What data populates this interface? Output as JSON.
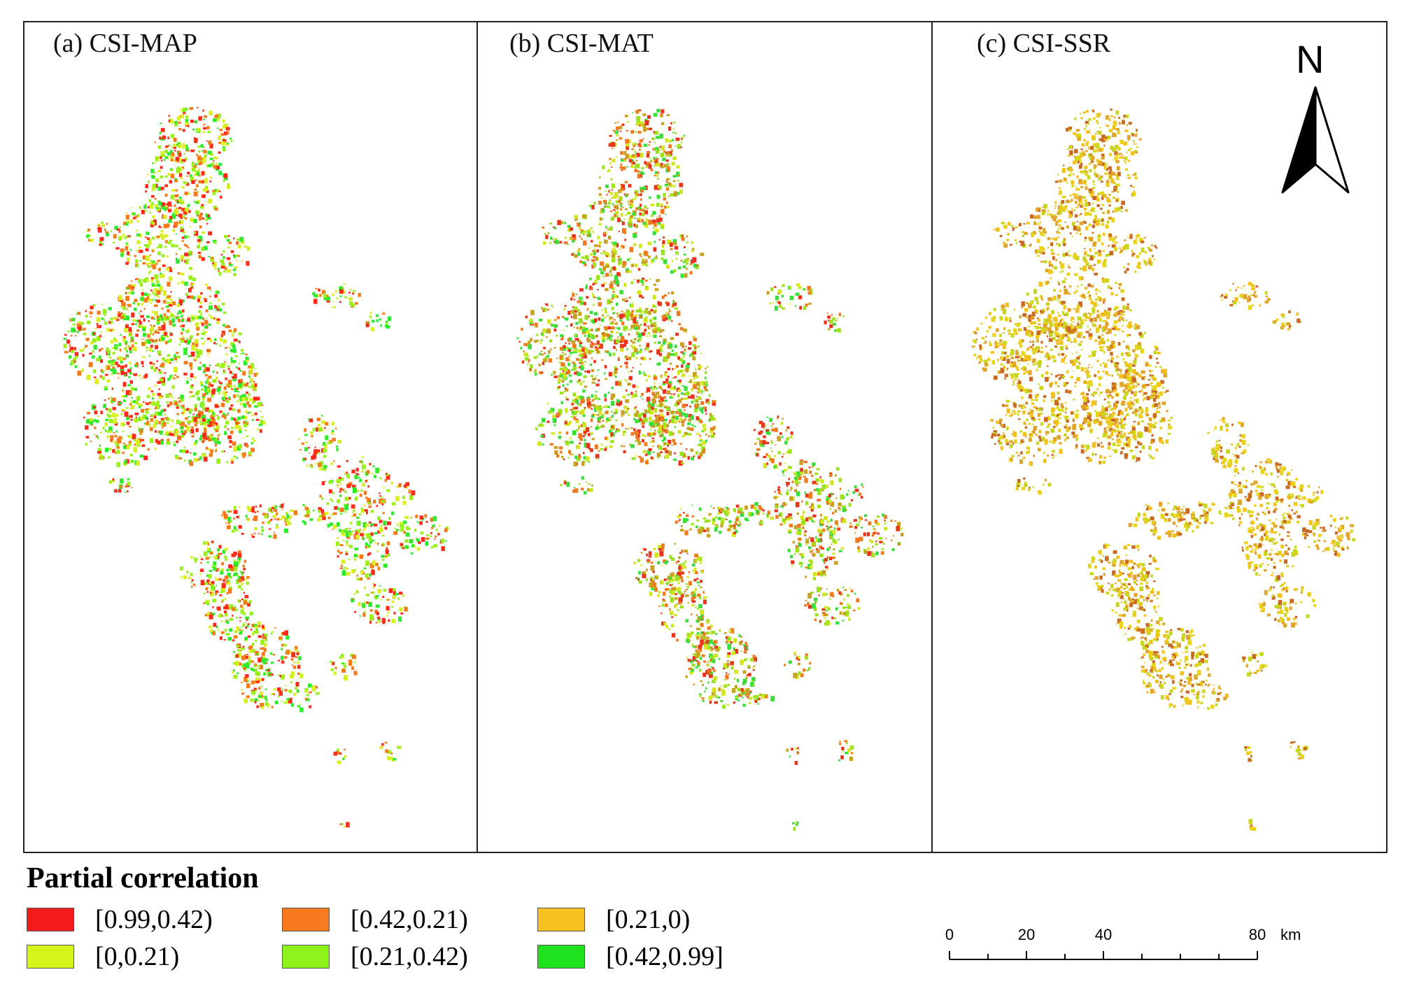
{
  "panels": [
    {
      "title": "(a) CSI-MAP",
      "palette": [
        "#ff2a1a",
        "#f47a1a",
        "#9bef1a",
        "#2cea2c",
        "#d8ef24"
      ]
    },
    {
      "title": "(b) CSI-MAT",
      "palette": [
        "#e8341c",
        "#ef7a20",
        "#9ce21e",
        "#3ade3a",
        "#d2e61e",
        "#c9a020"
      ]
    },
    {
      "title": "(c) CSI-SSR",
      "palette": [
        "#e8d21a",
        "#f2c21c",
        "#c8d61e",
        "#e0a42a",
        "#c86a24"
      ]
    }
  ],
  "north_arrow": {
    "label": "N"
  },
  "legend": {
    "title": "Partial correlation",
    "items": [
      {
        "label": "[0.99,0.42)",
        "color": "#f21a1a"
      },
      {
        "label": "[0.42,0.21)",
        "color": "#f77a1f"
      },
      {
        "label": "[0.21,0)",
        "color": "#f7c21f"
      },
      {
        "label": "[0,0.21)",
        "color": "#d6f41a"
      },
      {
        "label": "[0.21,0.42)",
        "color": "#8ff21a"
      },
      {
        "label": "[0.42,0.99]",
        "color": "#1fe21f"
      }
    ]
  },
  "scalebar": {
    "ticks": [
      "0",
      "20",
      "40",
      "80"
    ],
    "unit": "km"
  }
}
